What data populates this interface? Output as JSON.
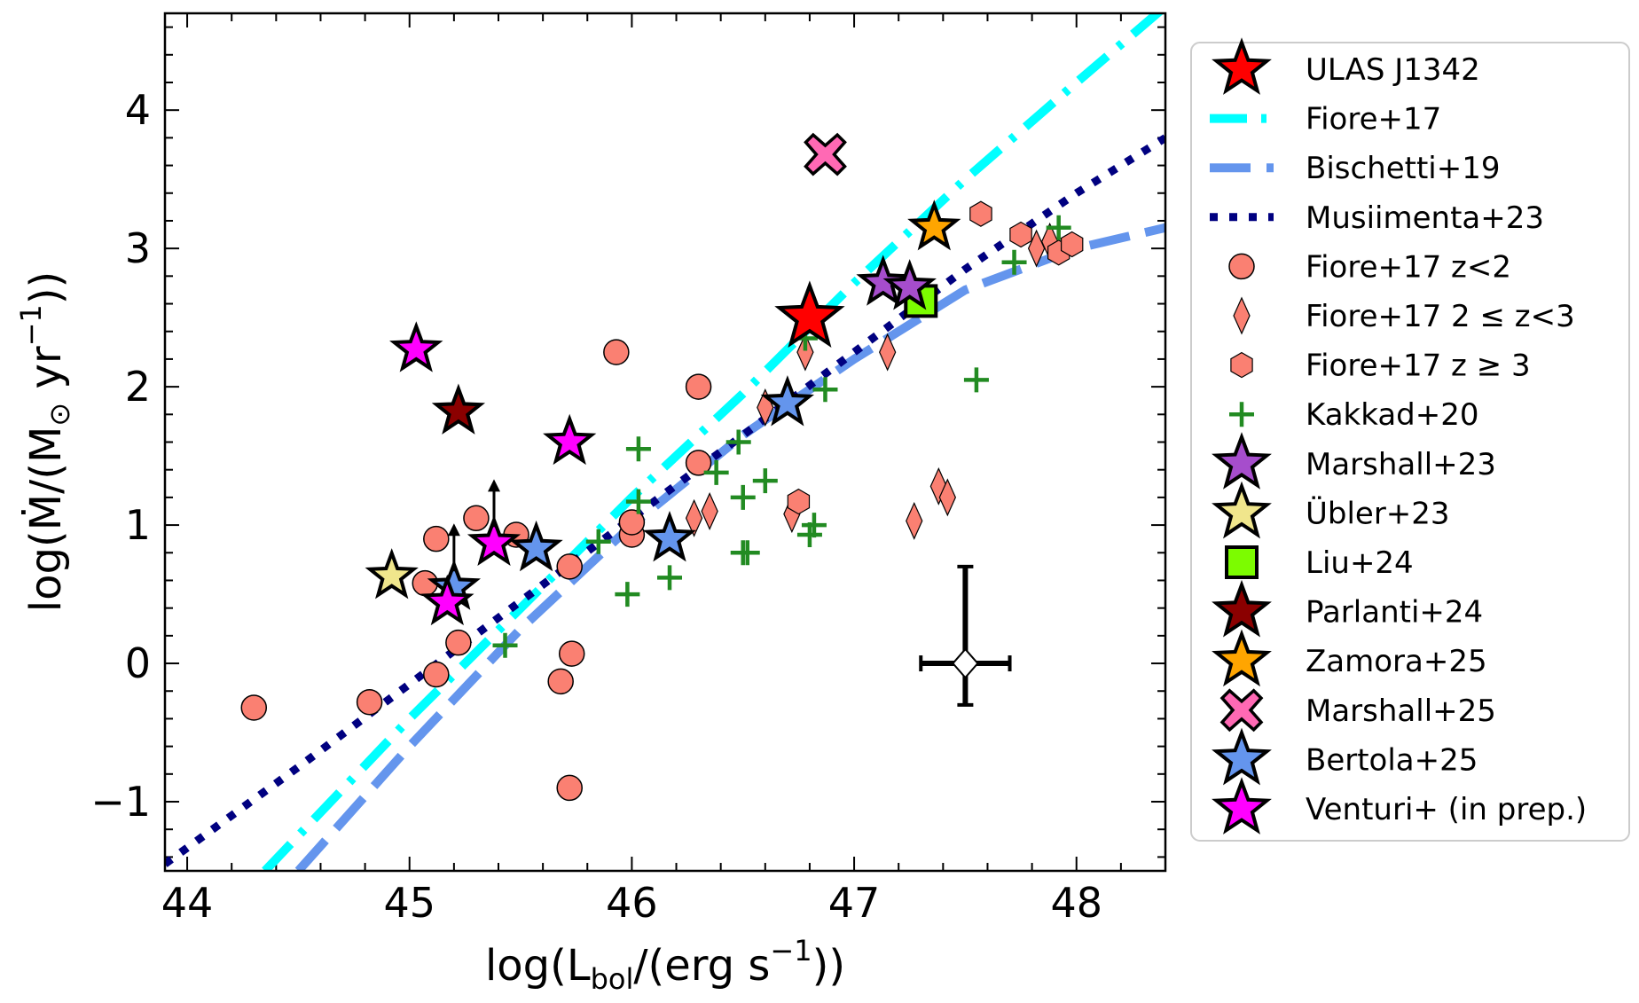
{
  "chart_data": {
    "type": "scatter",
    "xlabel": "log(L_bol/(erg s^-1))",
    "ylabel": "log(Ṁ/(M_⊙ yr^-1))",
    "xlim": [
      43.9,
      48.4
    ],
    "ylim": [
      -1.5,
      4.7
    ],
    "xticks": [
      44,
      45,
      46,
      47,
      48
    ],
    "xtick_labels": [
      "44",
      "45",
      "46",
      "47",
      "48"
    ],
    "yticks": [
      -1,
      0,
      1,
      2,
      3,
      4
    ],
    "ytick_labels": [
      "−1",
      "0",
      "1",
      "2",
      "3",
      "4"
    ],
    "legend_position": "outside-right",
    "lines": [
      {
        "name": "Fiore+17",
        "color": "#00ffff",
        "style": "dashdot",
        "points": [
          [
            44.35,
            -1.5
          ],
          [
            45.0,
            -0.4
          ],
          [
            45.5,
            0.4
          ],
          [
            46.0,
            1.2
          ],
          [
            46.5,
            1.95
          ],
          [
            47.0,
            2.75
          ],
          [
            47.5,
            3.5
          ],
          [
            48.0,
            4.2
          ],
          [
            48.4,
            4.75
          ]
        ]
      },
      {
        "name": "Bischetti+19",
        "color": "#6495ed",
        "style": "dashed",
        "points": [
          [
            44.5,
            -1.5
          ],
          [
            45.0,
            -0.6
          ],
          [
            45.5,
            0.25
          ],
          [
            46.0,
            1.0
          ],
          [
            46.5,
            1.65
          ],
          [
            47.0,
            2.2
          ],
          [
            47.5,
            2.7
          ],
          [
            48.0,
            3.0
          ],
          [
            48.4,
            3.15
          ]
        ]
      },
      {
        "name": "Musiimenta+23",
        "color": "#000080",
        "style": "dotted",
        "points": [
          [
            43.9,
            -1.45
          ],
          [
            44.5,
            -0.75
          ],
          [
            45.0,
            -0.15
          ],
          [
            45.5,
            0.45
          ],
          [
            46.0,
            1.05
          ],
          [
            46.5,
            1.65
          ],
          [
            47.0,
            2.25
          ],
          [
            47.5,
            2.85
          ],
          [
            48.0,
            3.4
          ],
          [
            48.4,
            3.8
          ]
        ]
      }
    ],
    "series": [
      {
        "name": "ULAS J1342",
        "marker": "star",
        "color": "#ff0000",
        "size": 36,
        "points": [
          [
            46.8,
            2.5
          ]
        ]
      },
      {
        "name": "Fiore+17 z<2",
        "marker": "circle",
        "color": "#fa8072",
        "points": [
          [
            44.3,
            -0.32
          ],
          [
            44.82,
            -0.28
          ],
          [
            45.07,
            0.58
          ],
          [
            45.12,
            0.9
          ],
          [
            45.12,
            -0.08
          ],
          [
            45.22,
            0.15
          ],
          [
            45.3,
            1.05
          ],
          [
            45.48,
            0.93
          ],
          [
            45.68,
            -0.13
          ],
          [
            45.72,
            0.7
          ],
          [
            45.73,
            0.07
          ],
          [
            45.72,
            -0.9
          ],
          [
            45.93,
            2.25
          ],
          [
            46.0,
            0.93
          ],
          [
            46.0,
            1.02
          ],
          [
            46.3,
            2.0
          ],
          [
            46.3,
            1.45
          ]
        ]
      },
      {
        "name": "Fiore+17 2≤z<3",
        "marker": "diamond",
        "color": "#fa8072",
        "points": [
          [
            46.28,
            1.05
          ],
          [
            46.35,
            1.1
          ],
          [
            46.6,
            1.85
          ],
          [
            46.72,
            1.08
          ],
          [
            46.78,
            2.25
          ],
          [
            47.15,
            2.25
          ],
          [
            47.27,
            1.03
          ],
          [
            47.38,
            1.28
          ],
          [
            47.42,
            1.2
          ],
          [
            47.82,
            3.0
          ],
          [
            47.88,
            3.05
          ]
        ]
      },
      {
        "name": "Fiore+17 z≥3",
        "marker": "hexagon",
        "color": "#fa8072",
        "points": [
          [
            46.75,
            1.17
          ],
          [
            47.57,
            3.25
          ],
          [
            47.75,
            3.1
          ],
          [
            47.92,
            2.97
          ],
          [
            47.98,
            3.03
          ]
        ]
      },
      {
        "name": "Kakkad+20",
        "marker": "plus",
        "color": "#228b22",
        "points": [
          [
            45.43,
            0.13
          ],
          [
            45.85,
            0.88
          ],
          [
            45.98,
            0.5
          ],
          [
            46.03,
            1.55
          ],
          [
            46.03,
            1.17
          ],
          [
            46.17,
            0.62
          ],
          [
            46.38,
            1.38
          ],
          [
            46.48,
            1.6
          ],
          [
            46.5,
            1.2
          ],
          [
            46.5,
            0.8
          ],
          [
            46.52,
            0.8
          ],
          [
            46.6,
            1.32
          ],
          [
            46.8,
            0.93
          ],
          [
            46.82,
            1.0
          ],
          [
            46.87,
            1.98
          ],
          [
            47.55,
            2.05
          ],
          [
            47.72,
            2.9
          ],
          [
            47.92,
            3.15
          ],
          [
            46.78,
            2.35
          ]
        ]
      },
      {
        "name": "Marshall+23",
        "marker": "star",
        "color": "#a64dcc",
        "size": 26,
        "points": [
          [
            47.13,
            2.75
          ],
          [
            47.25,
            2.72
          ]
        ]
      },
      {
        "name": "Übler+23",
        "marker": "star",
        "color": "#f0e68c",
        "size": 26,
        "points": [
          [
            44.92,
            0.63
          ]
        ]
      },
      {
        "name": "Liu+24",
        "marker": "square",
        "color": "#7cfc00",
        "points": [
          [
            47.3,
            2.62
          ]
        ]
      },
      {
        "name": "Parlanti+24",
        "marker": "star",
        "color": "#8b0000",
        "size": 26,
        "points": [
          [
            45.22,
            1.82
          ]
        ]
      },
      {
        "name": "Zamora+25",
        "marker": "star",
        "color": "#ffa500",
        "size": 26,
        "points": [
          [
            47.36,
            3.15
          ]
        ]
      },
      {
        "name": "Marshall+25",
        "marker": "x",
        "color": "#ff69b4",
        "points": [
          [
            46.87,
            3.68
          ]
        ]
      },
      {
        "name": "Bertola+25",
        "marker": "star",
        "color": "#6495ed",
        "size": 26,
        "points": [
          [
            45.2,
            0.55
          ],
          [
            45.57,
            0.83
          ],
          [
            46.17,
            0.9
          ],
          [
            46.7,
            1.88
          ]
        ]
      },
      {
        "name": "Venturi+ (in prep.)",
        "marker": "star",
        "color": "#ff00ff",
        "size": 26,
        "points": [
          [
            45.03,
            2.27
          ],
          [
            45.17,
            0.44
          ],
          [
            45.38,
            0.87
          ],
          [
            45.72,
            1.6
          ]
        ]
      }
    ],
    "lower_limit_arrows": [
      [
        45.2,
        0.55
      ],
      [
        45.38,
        0.87
      ]
    ],
    "representative_error": {
      "x": 47.5,
      "y": 0.0,
      "xerr": 0.2,
      "yerr_low": 0.3,
      "yerr_high": 0.7
    },
    "legend": [
      {
        "label": "ULAS J1342",
        "kind": "star",
        "color": "#ff0000"
      },
      {
        "label": "Fiore+17",
        "kind": "line-dashdot",
        "color": "#00ffff"
      },
      {
        "label": "Bischetti+19",
        "kind": "line-dashed",
        "color": "#6495ed"
      },
      {
        "label": "Musiimenta+23",
        "kind": "line-dotted",
        "color": "#000080"
      },
      {
        "label": "Fiore+17 z<2",
        "kind": "circle",
        "color": "#fa8072"
      },
      {
        "label": "Fiore+17 2 ≤ z<3",
        "kind": "diamond",
        "color": "#fa8072"
      },
      {
        "label": "Fiore+17 z ≥ 3",
        "kind": "hexagon",
        "color": "#fa8072"
      },
      {
        "label": "Kakkad+20",
        "kind": "plus",
        "color": "#228b22"
      },
      {
        "label": "Marshall+23",
        "kind": "star",
        "color": "#a64dcc"
      },
      {
        "label": "Übler+23",
        "kind": "star",
        "color": "#f0e68c"
      },
      {
        "label": "Liu+24",
        "kind": "square",
        "color": "#7cfc00"
      },
      {
        "label": "Parlanti+24",
        "kind": "star",
        "color": "#8b0000"
      },
      {
        "label": "Zamora+25",
        "kind": "star",
        "color": "#ffa500"
      },
      {
        "label": "Marshall+25",
        "kind": "x",
        "color": "#ff69b4"
      },
      {
        "label": "Bertola+25",
        "kind": "star",
        "color": "#6495ed"
      },
      {
        "label": "Venturi+ (in prep.)",
        "kind": "star",
        "color": "#ff00ff"
      }
    ]
  }
}
